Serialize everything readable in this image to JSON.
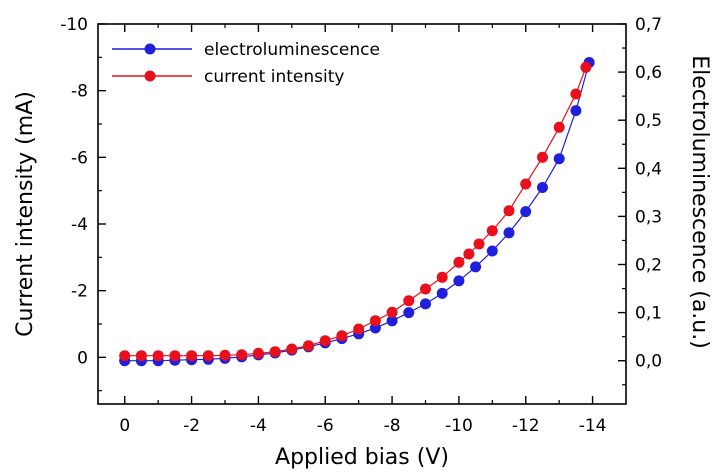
{
  "chart_data": {
    "type": "scatter",
    "title": "",
    "xlabel": "Applied bias (V)",
    "ylabel_left": "Current intensity (mA)",
    "ylabel_right": "Electroluminescence (a.u.)",
    "xlim": [
      0.8,
      -15
    ],
    "ylim_left": [
      1.4,
      -10
    ],
    "ylim_right": [
      -0.09,
      0.7
    ],
    "x_ticks": [
      0,
      -2,
      -4,
      -6,
      -8,
      -10,
      -12,
      -14
    ],
    "x_tick_labels": [
      "0",
      "-2",
      "-4",
      "-6",
      "-8",
      "-10",
      "-12",
      "-14"
    ],
    "y_left_ticks": [
      0,
      -2,
      -4,
      -6,
      -8,
      -10
    ],
    "y_left_tick_labels": [
      "0",
      "-2",
      "-4",
      "-6",
      "-8",
      "-10"
    ],
    "y_right_ticks": [
      0.0,
      0.1,
      0.2,
      0.3,
      0.4,
      0.5,
      0.6,
      0.7
    ],
    "y_right_tick_labels": [
      "0,0",
      "0,1",
      "0,2",
      "0,3",
      "0,4",
      "0,5",
      "0,6",
      "0,7"
    ],
    "grid": false,
    "legend_position": "top-left",
    "series": [
      {
        "name": "electroluminescence",
        "color": "#1f1fdc",
        "axis": "right",
        "x": [
          0,
          -0.5,
          -1,
          -1.5,
          -2,
          -2.5,
          -3,
          -3.5,
          -4,
          -4.5,
          -5,
          -5.5,
          -6,
          -6.5,
          -7,
          -7.5,
          -8,
          -8.5,
          -9,
          -9.5,
          -10,
          -10.5,
          -11,
          -11.5,
          -12,
          -12.5,
          -13,
          -13.5,
          -13.9
        ],
        "y": [
          0.0,
          0.0,
          0.0,
          0.001,
          0.002,
          0.003,
          0.005,
          0.008,
          0.012,
          0.016,
          0.022,
          0.029,
          0.037,
          0.046,
          0.056,
          0.068,
          0.083,
          0.1,
          0.118,
          0.14,
          0.166,
          0.195,
          0.228,
          0.266,
          0.31,
          0.36,
          0.42,
          0.52,
          0.62
        ]
      },
      {
        "name": "current intensity",
        "color": "#e8101c",
        "axis": "left",
        "x": [
          0,
          -0.5,
          -1,
          -1.5,
          -2,
          -2.5,
          -3,
          -3.5,
          -4,
          -4.5,
          -5,
          -5.5,
          -6,
          -6.5,
          -7,
          -7.5,
          -8,
          -8.5,
          -9,
          -9.5,
          -10,
          -10.3,
          -10.6,
          -11,
          -11.5,
          -12,
          -12.5,
          -13,
          -13.5,
          -13.8
        ],
        "y": [
          -0.05,
          -0.05,
          -0.05,
          -0.05,
          -0.05,
          -0.05,
          -0.06,
          -0.08,
          -0.12,
          -0.17,
          -0.25,
          -0.35,
          -0.5,
          -0.65,
          -0.85,
          -1.1,
          -1.35,
          -1.7,
          -2.05,
          -2.4,
          -2.85,
          -3.1,
          -3.4,
          -3.8,
          -4.4,
          -5.2,
          -6.0,
          -6.9,
          -7.9,
          -8.7
        ]
      }
    ]
  }
}
